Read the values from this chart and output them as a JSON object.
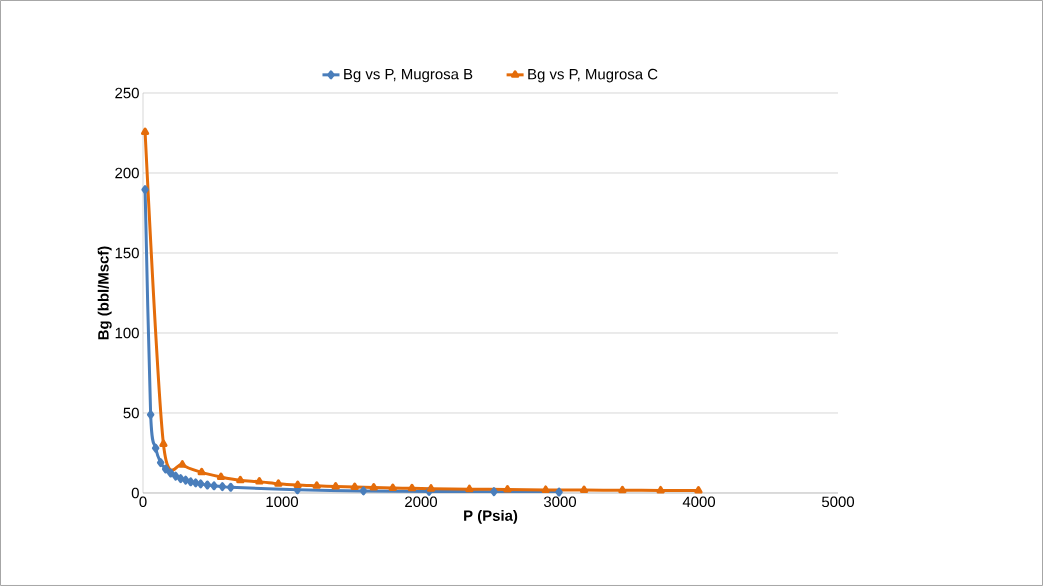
{
  "chart_data": {
    "type": "line",
    "xlabel": "P (Psia)",
    "ylabel": "Bg (bbl/Mscf)",
    "xlim": [
      0,
      5000
    ],
    "xticks": [
      0,
      1000,
      2000,
      3000,
      4000,
      5000
    ],
    "ylim": [
      0,
      250
    ],
    "yticks": [
      0,
      50,
      100,
      150,
      200,
      250
    ],
    "grid": "y",
    "legend": "top",
    "line_style": "solid",
    "series": [
      {
        "name": "Bg vs P, Mugrosa B",
        "color": "#4a7ebb",
        "marker": "diamond",
        "x": [
          15,
          55,
          91,
          127,
          163,
          199,
          235,
          271,
          307,
          343,
          379,
          415,
          463,
          511,
          571,
          631,
          1111,
          1586,
          2058,
          2525,
          2993
        ],
        "values": [
          189.6,
          49,
          28,
          19,
          15,
          12.5,
          10.5,
          9,
          8,
          7,
          6.3,
          5.7,
          5,
          4.5,
          4,
          3.6,
          2,
          1.3,
          1,
          0.8,
          0.6
        ]
      },
      {
        "name": "Bg vs P, Mugrosa C",
        "color": "#e46c0a",
        "marker": "triangle",
        "x": [
          15,
          147,
          283,
          422,
          561,
          700,
          837,
          974,
          1113,
          1250,
          1386,
          1523,
          1660,
          1797,
          1935,
          2072,
          2348,
          2622,
          2897,
          3173,
          3449,
          3724,
          3996
        ],
        "values": [
          225.6,
          30.6,
          17.7,
          12.9,
          10,
          7.9,
          7.1,
          5.8,
          5,
          4.5,
          4,
          3.7,
          3.4,
          3.1,
          2.9,
          2.7,
          2.4,
          2.2,
          1.9,
          1.8,
          1.7,
          1.6,
          1.5
        ]
      }
    ]
  }
}
